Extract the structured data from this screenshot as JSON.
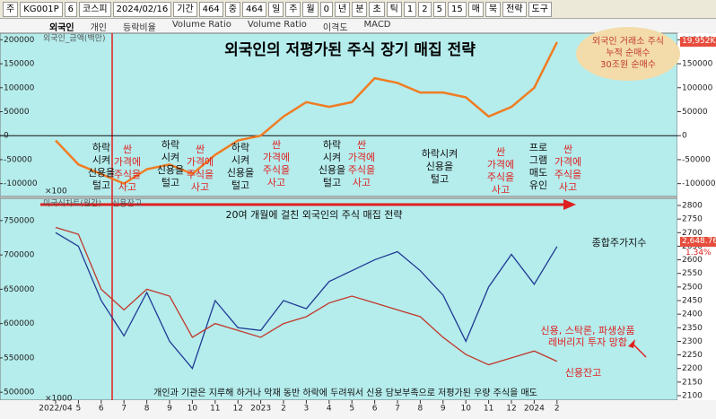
{
  "toolbar": {
    "items": [
      "주",
      "KG001P",
      "6",
      "코스피",
      "2024/02/16",
      "기간",
      "464",
      "중",
      "464",
      "일",
      "주",
      "월",
      "0",
      "년",
      "분",
      "초",
      "틱",
      "1",
      "2",
      "5",
      "15",
      "매",
      "북",
      "전략",
      "도구"
    ]
  },
  "tabs": [
    "외국인",
    "개인",
    "등락비율",
    "Volume Ratio",
    "Volume Ratio",
    "이격도",
    "MACD"
  ],
  "chart_data": [
    {
      "type": "line",
      "title": "외국인의 저평가된 주식 장기 매집 전략",
      "unit_note": "×100",
      "current_tag": "19,952K",
      "ylim": [
        -110000,
        210000
      ],
      "yticks": [
        200000,
        150000,
        100000,
        50000,
        0,
        -50000,
        -100000
      ],
      "y2ticks": [
        200000,
        150000,
        100000,
        50000,
        0,
        -50000,
        -100000
      ],
      "series": [
        {
          "name": "외국인_금액(백만)",
          "color": "#f07c22",
          "values": [
            -10000,
            -60000,
            -80000,
            -100000,
            -70000,
            -60000,
            -80000,
            -40000,
            -10000,
            0,
            40000,
            70000,
            60000,
            70000,
            120000,
            110000,
            90000,
            90000,
            80000,
            40000,
            60000,
            100000,
            195000
          ]
        }
      ],
      "annotations": [
        {
          "text": "하락\n시켜\n신용을\n털고",
          "color": "#111111"
        },
        {
          "text": "싼\n가격에\n주식을\n사고",
          "color": "#e02020"
        },
        {
          "text": "하락\n시켜\n신용을\n털고",
          "color": "#111111"
        },
        {
          "text": "싼\n가격에\n주식을\n사고",
          "color": "#e02020"
        },
        {
          "text": "하락\n시켜\n신용을\n털고",
          "color": "#111111"
        },
        {
          "text": "싼\n가격에\n주식을\n사고",
          "color": "#e02020"
        },
        {
          "text": "하락\n시켜\n신용을\n털고",
          "color": "#111111"
        },
        {
          "text": "싼\n가격에\n주식을\n사고",
          "color": "#e02020"
        },
        {
          "text": "하락시켜\n신용을\n털고",
          "color": "#111111"
        },
        {
          "text": "싼\n가격에\n주식을\n사고",
          "color": "#e02020"
        },
        {
          "text": "프로\n그램\n매도\n유인",
          "color": "#111111"
        },
        {
          "text": "싼\n가격에\n주식을\n사고",
          "color": "#e02020"
        },
        {
          "text": "외국인 거래소 주식\n누적 순매수\n30조원 순매수",
          "color": "#c0392b"
        }
      ]
    },
    {
      "type": "line",
      "unit_note": "×1000",
      "current_tags": [
        "2,648.76",
        "1.34%"
      ],
      "categories": [
        "2022/04",
        "5",
        "6",
        "7",
        "8",
        "9",
        "10",
        "11",
        "12",
        "2023",
        "2",
        "3",
        "4",
        "5",
        "6",
        "7",
        "8",
        "9",
        "10",
        "11",
        "12",
        "2024",
        "2"
      ],
      "ylim": [
        495000,
        772000
      ],
      "yticks": [
        750000,
        700000,
        650000,
        600000,
        550000,
        500000
      ],
      "y2lim": [
        2100,
        2800
      ],
      "y2ticks": [
        2800,
        2750,
        2700,
        2650,
        2600,
        2550,
        2500,
        2450,
        2400,
        2350,
        2300,
        2250,
        2200,
        2150,
        2100
      ],
      "series": [
        {
          "name": "미국식차트(월간)",
          "color": "#1f3a93",
          "axis": "y2",
          "values": [
            2700,
            2650,
            2450,
            2320,
            2480,
            2300,
            2200,
            2450,
            2350,
            2340,
            2450,
            2420,
            2520,
            2560,
            2600,
            2630,
            2560,
            2470,
            2300,
            2500,
            2620,
            2510,
            2648.76
          ]
        },
        {
          "name": "신용잔고",
          "color": "#c0392b",
          "values": [
            740000,
            730000,
            650000,
            620000,
            650000,
            640000,
            580000,
            600000,
            590000,
            580000,
            600000,
            610000,
            630000,
            640000,
            630000,
            620000,
            610000,
            580000,
            555000,
            540000,
            550000,
            560000,
            545000
          ]
        }
      ],
      "annotations": [
        {
          "text": "20여 개월에 걸친 외국인의 주식 매집 전략",
          "color": "#111111"
        },
        {
          "text": "종합주가지수",
          "color": "#111111"
        },
        {
          "text": "신용, 스탁론, 파생상품\n레버리지 투자 망함",
          "color": "#e02020"
        },
        {
          "text": "신용잔고",
          "color": "#e02020"
        },
        {
          "text": "개인과 기관은 지루해 하거나 악재 동반 하락에 두려워서 신용 담보부족으로 저평가된 우량 주식을 매도",
          "color": "#111111"
        }
      ]
    }
  ]
}
